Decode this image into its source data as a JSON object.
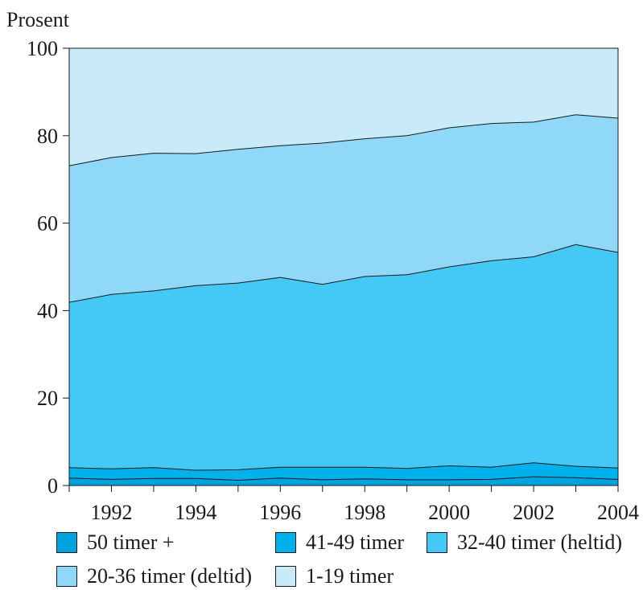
{
  "chart_data": {
    "type": "area",
    "stacked": true,
    "ylabel": "Prosent",
    "ylim": [
      0,
      100
    ],
    "yticks": [
      0,
      20,
      40,
      60,
      80,
      100
    ],
    "xlim": [
      1991,
      2004
    ],
    "xticks": [
      1992,
      1994,
      1996,
      1998,
      2000,
      2002,
      2004
    ],
    "grid": false,
    "legend_position": "bottom",
    "x": [
      1991,
      1992,
      1993,
      1994,
      1995,
      1996,
      1997,
      1998,
      1999,
      2000,
      2001,
      2002,
      2003,
      2004
    ],
    "series": [
      {
        "name": "50 timer +",
        "color": "#00a3e0",
        "values": [
          1.7,
          1.4,
          1.6,
          1.6,
          1.2,
          1.7,
          1.3,
          1.5,
          1.3,
          1.3,
          1.4,
          2.0,
          1.8,
          1.4
        ]
      },
      {
        "name": "41-49 timer",
        "color": "#00b1ec",
        "values": [
          2.4,
          2.4,
          2.5,
          1.9,
          2.4,
          2.5,
          2.9,
          2.7,
          2.6,
          3.2,
          2.8,
          3.2,
          2.6,
          2.6
        ]
      },
      {
        "name": "32-40 timer (heltid)",
        "color": "#44c8f5",
        "values": [
          37.8,
          39.9,
          40.4,
          42.2,
          42.7,
          43.4,
          41.8,
          43.6,
          44.3,
          45.5,
          47.2,
          47.1,
          50.7,
          49.3
        ]
      },
      {
        "name": "20-36 timer (deltid)",
        "color": "#8fd8f7",
        "values": [
          31.2,
          31.3,
          31.5,
          30.2,
          30.6,
          30.1,
          32.3,
          31.5,
          31.8,
          31.8,
          31.4,
          30.8,
          29.7,
          30.7
        ]
      },
      {
        "name": "1-19 timer",
        "color": "#c8eaf9",
        "values": [
          26.9,
          25.0,
          24.0,
          24.1,
          23.1,
          22.3,
          21.7,
          20.7,
          20.0,
          18.2,
          17.2,
          16.9,
          15.2,
          16.0
        ]
      }
    ]
  }
}
